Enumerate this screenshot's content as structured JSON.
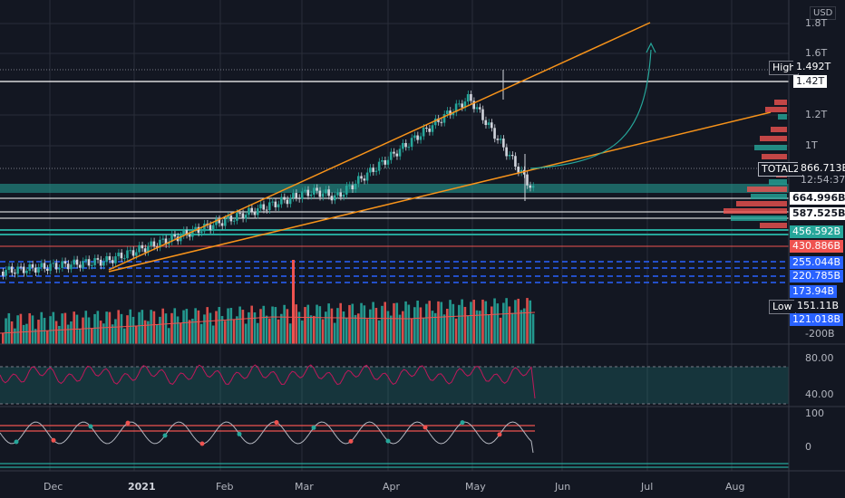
{
  "currency": "USD",
  "price_axis": [
    "1.8T",
    "1.6T",
    "1.42T",
    "1.2T",
    "1T"
  ],
  "high": {
    "label": "High",
    "value": "1.492T"
  },
  "low": {
    "label": "Low",
    "value": "151.11B"
  },
  "symbol": {
    "name": "TOTAL2",
    "value": "866.713B",
    "countdown": "12:54:37"
  },
  "levels": [
    "664.996B",
    "587.525B",
    "456.592B",
    "430.886B",
    "255.044B",
    "220.785B",
    "173.94B",
    "121.018B"
  ],
  "volume_axis": "-200B",
  "rsi_axis": [
    "80.00",
    "40.00"
  ],
  "osc_axis": [
    "100",
    "0"
  ],
  "time_axis": [
    "Dec",
    "2021",
    "Feb",
    "Mar",
    "Apr",
    "May",
    "Jun",
    "Jul",
    "Aug"
  ],
  "colors": {
    "bg": "#131722",
    "up": "#26a69a",
    "down": "#ef5350",
    "orange": "#f7931a",
    "grid": "#2a2e39",
    "white": "#ffffff"
  }
}
